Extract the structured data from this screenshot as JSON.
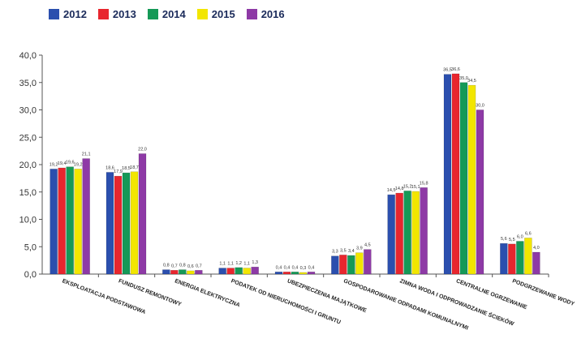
{
  "chart_data": {
    "type": "bar",
    "categories": [
      "EKSPLOATACJA PODSTAWOWA",
      "FUNDUSZ REMONTOWY",
      "ENERGIA ELEKTRYCZNA",
      "PODATEK OD NIERUCHOMOŚCI I GRUNTU",
      "UBEZPIECZENIA MAJĄTKOWE",
      "GOSPODAROWANIE ODPADAMI KOMUNALNYMI",
      "ZIMNA WODA I ODPROWADZANIE ŚCIEKÓW",
      "CENTRALNE OGRZEWANIE",
      "PODGRZEWANIE WODY"
    ],
    "series": [
      {
        "name": "2012",
        "color": "#2b4fae",
        "values": [
          19.2,
          18.6,
          0.8,
          1.1,
          0.4,
          3.3,
          14.5,
          36.5,
          5.6
        ],
        "labels": [
          "19,2",
          "18,6",
          "0,8",
          "1,1",
          "0,4",
          "3,3",
          "14,5",
          "36,5",
          "5,6"
        ]
      },
      {
        "name": "2013",
        "color": "#e8262e",
        "values": [
          19.4,
          17.9,
          0.7,
          1.1,
          0.4,
          3.5,
          14.8,
          36.6,
          5.5
        ],
        "labels": [
          "19,4",
          "17,9",
          "0,7",
          "1,1",
          "0,4",
          "3,5",
          "14,8",
          "36,6",
          "5,5"
        ]
      },
      {
        "name": "2014",
        "color": "#159957",
        "values": [
          19.6,
          18.5,
          0.8,
          1.2,
          0.4,
          3.4,
          15.2,
          35.0,
          6.0
        ],
        "labels": [
          "19,6",
          "18,5",
          "0,8",
          "1,2",
          "0,4",
          "3,4",
          "15,2",
          "35,0",
          "6,0"
        ]
      },
      {
        "name": "2015",
        "color": "#f2e600",
        "values": [
          19.2,
          18.7,
          0.6,
          1.1,
          0.3,
          3.9,
          15.1,
          34.5,
          6.6
        ],
        "labels": [
          "19,2",
          "18,7",
          "0,6",
          "1,1",
          "0,3",
          "3,9",
          "15,1",
          "34,5",
          "6,6"
        ]
      },
      {
        "name": "2016",
        "color": "#8e3aa6",
        "values": [
          21.1,
          22.0,
          0.7,
          1.3,
          0.4,
          4.5,
          15.8,
          30.0,
          4.0
        ],
        "labels": [
          "21,1",
          "22,0",
          "0,7",
          "1,3",
          "0,4",
          "4,5",
          "15,8",
          "30,0",
          "4,0"
        ]
      }
    ],
    "y_ticks": [
      "0,0",
      "5,0",
      "10,0",
      "15,0",
      "20,0",
      "25,0",
      "30,0",
      "35,0",
      "40,0"
    ],
    "ylim": [
      0,
      40
    ],
    "grid": false,
    "legend_position": "top-left",
    "title": "",
    "xlabel": "",
    "ylabel": ""
  }
}
